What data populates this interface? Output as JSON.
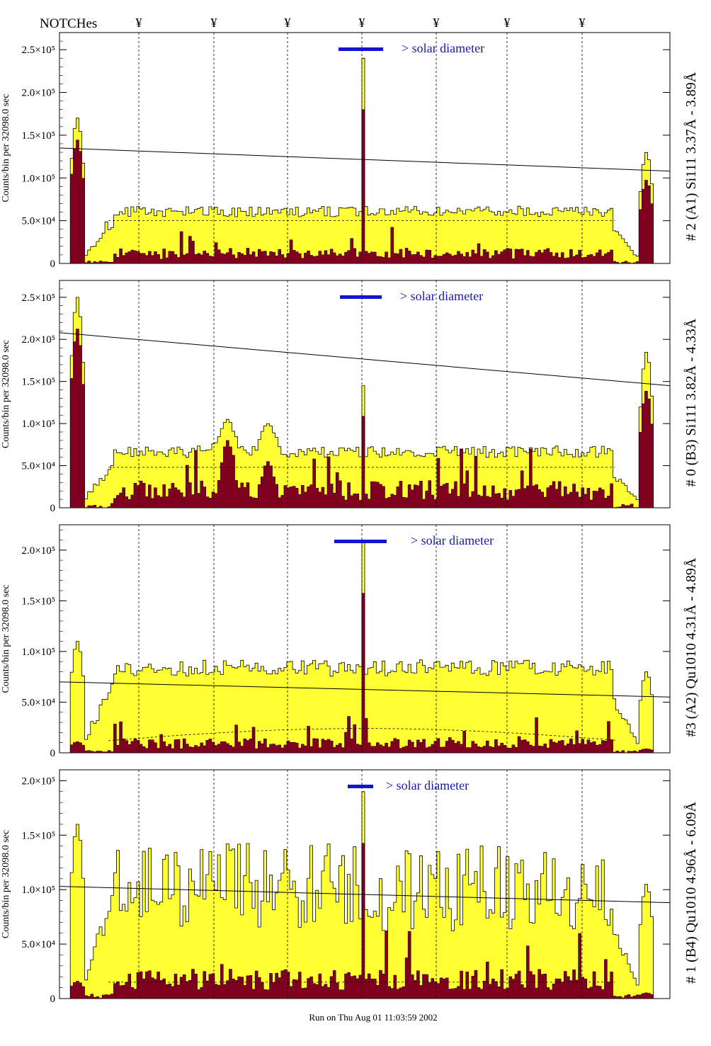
{
  "header": {
    "notch_label": "NOTCHes",
    "notch_symbol": "¥",
    "notch_count": 7
  },
  "footer": {
    "run_text": "Run on Thu Aug 01 11:03:59 2002"
  },
  "colors": {
    "fill_total": "#ffff33",
    "fill_sub": "#800020",
    "solar_bar": "#1515d0",
    "solar_text": "#1a1aa8"
  },
  "chart_data": [
    {
      "type": "histogram",
      "panel_title": "# 2 (A1) Si111  3.37Å - 3.89Å",
      "ylabel": "Counts/bin per  32098.0 sec",
      "yticks": [
        "0",
        "5.0×10⁴",
        "1.0×10⁵",
        "1.5×10⁵",
        "2.0×10⁵",
        "2.5×10⁵"
      ],
      "ytick_values": [
        0,
        50000,
        100000,
        150000,
        200000,
        250000
      ],
      "ylim": [
        0,
        270000
      ],
      "annotation": "> solar diameter",
      "line_start": 135000,
      "line_end": 108000,
      "level": 62000,
      "sub_level": 10000,
      "peak": 240000,
      "left_edge_peak": 170000,
      "right_edge_peak": 130000,
      "dashed_level": 50000
    },
    {
      "type": "histogram",
      "panel_title": "# 0 (B3) Si111  3.82Å - 4.33Å",
      "ylabel": "Counts/bin per  32098.0 sec",
      "yticks": [
        "0",
        "5.0×10⁴",
        "1.0×10⁵",
        "1.5×10⁵",
        "2.0×10⁵",
        "2.5×10⁵"
      ],
      "ytick_values": [
        0,
        50000,
        100000,
        150000,
        200000,
        250000
      ],
      "ylim": [
        0,
        270000
      ],
      "annotation": "> solar diameter",
      "line_start": 208000,
      "line_end": 145000,
      "level": 68000,
      "sub_level": 18000,
      "peak": 145000,
      "left_edge_peak": 250000,
      "right_edge_peak": 185000,
      "dashed_level": 48000
    },
    {
      "type": "histogram",
      "panel_title": "#3 (A2) Qu1010  4.31Å - 4.89Å",
      "ylabel": "Counts/bin per  32098.0 sec",
      "yticks": [
        "0",
        "5.0×10⁴",
        "1.0×10⁵",
        "1.5×10⁵",
        "2.0×10⁵"
      ],
      "ytick_values": [
        0,
        50000,
        100000,
        150000,
        200000
      ],
      "ylim": [
        0,
        225000
      ],
      "annotation": "> solar diameter",
      "line_start": 70000,
      "line_end": 55000,
      "level": 85000,
      "sub_level": 8000,
      "peak": 210000,
      "left_edge_peak": 110000,
      "right_edge_peak": 80000,
      "dashed_level": 20000
    },
    {
      "type": "histogram",
      "panel_title": "# 1 (B4) Qu1010 4.96Å - 6.09Å",
      "ylabel": "Counts/bin per  32098.0 sec",
      "yticks": [
        "0",
        "5.0×10⁴",
        "1.0×10⁵",
        "1.5×10⁵",
        "2.0×10⁵"
      ],
      "ytick_values": [
        0,
        50000,
        100000,
        150000,
        200000
      ],
      "ylim": [
        0,
        210000
      ],
      "annotation": "> solar diameter",
      "line_start": 103000,
      "line_end": 88000,
      "level": 110000,
      "sub_level": 15000,
      "peak": 190000,
      "left_edge_peak": 160000,
      "right_edge_peak": 105000,
      "dashed_level": 15000
    }
  ]
}
